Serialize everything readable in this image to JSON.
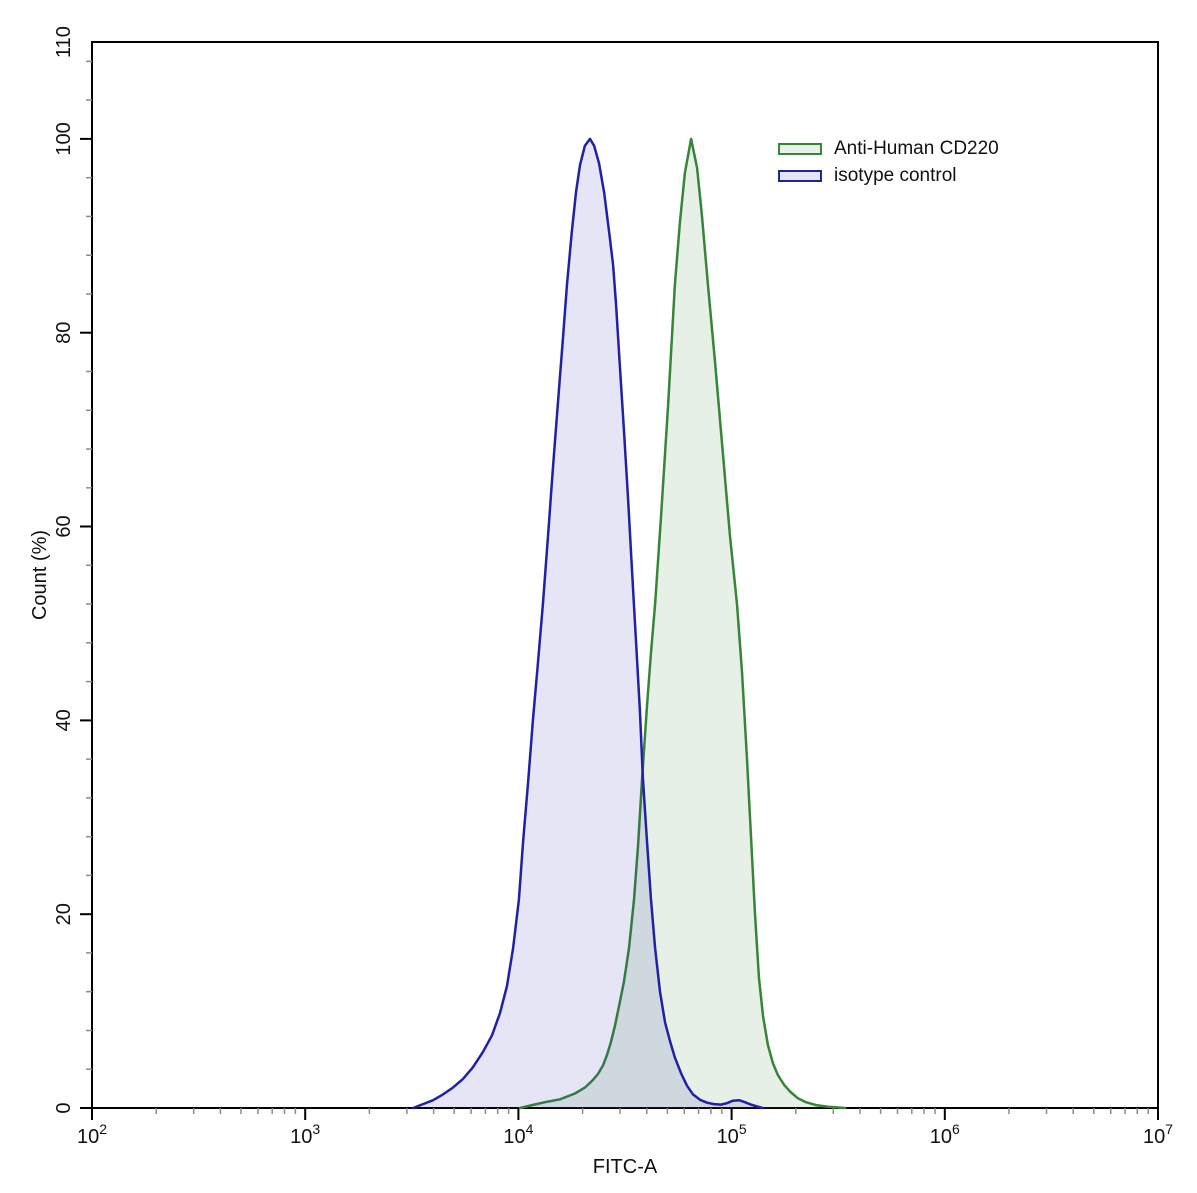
{
  "figure": {
    "background": "#ffffff"
  },
  "chart_data": {
    "type": "area",
    "subtype": "flow-cytometry-histogram",
    "title": "",
    "xlabel": "FITC-A",
    "ylabel": "Count  (%)",
    "x_scale": "log10",
    "x_range": [
      100,
      10000000
    ],
    "y_range": [
      0,
      110
    ],
    "x_tick_exponents": [
      2,
      3,
      4,
      5,
      6,
      7
    ],
    "y_major_ticks": [
      0,
      20,
      40,
      60,
      80,
      100,
      110
    ],
    "y_minor_step": 4,
    "y_minor_max": 108,
    "grid": "off",
    "frame": "full-box",
    "legend_position": "upper-right",
    "axis_color": "#000000",
    "minor_tick_color": "#8a8a8a",
    "series": [
      {
        "name": "Anti-Human CD220",
        "stroke": "#388438",
        "fill": "rgba(60,140,60,0.13)",
        "legend_fill": "#e7f1e7",
        "peak_x": 64500,
        "peak_y": 100,
        "points": [
          [
            10180,
            0
          ],
          [
            11590,
            0.3
          ],
          [
            13320,
            0.6
          ],
          [
            15670,
            0.9
          ],
          [
            18410,
            1.5
          ],
          [
            20510,
            2.1
          ],
          [
            22130,
            2.8
          ],
          [
            23600,
            3.5
          ],
          [
            24940,
            4.4
          ],
          [
            26060,
            5.5
          ],
          [
            27160,
            6.8
          ],
          [
            28380,
            8.5
          ],
          [
            29650,
            10.5
          ],
          [
            31260,
            13
          ],
          [
            33030,
            16.5
          ],
          [
            34850,
            21.5
          ],
          [
            36400,
            27
          ],
          [
            38020,
            34
          ],
          [
            40100,
            41.5
          ],
          [
            41880,
            47
          ],
          [
            43750,
            52
          ],
          [
            46670,
            61
          ],
          [
            50350,
            72.5
          ],
          [
            54200,
            85
          ],
          [
            57280,
            91.5
          ],
          [
            60400,
            96.5
          ],
          [
            64570,
            100
          ],
          [
            68900,
            97
          ],
          [
            72600,
            92
          ],
          [
            77450,
            85
          ],
          [
            83600,
            77
          ],
          [
            90200,
            68.5
          ],
          [
            98300,
            59
          ],
          [
            106000,
            52
          ],
          [
            111900,
            45
          ],
          [
            118100,
            36
          ],
          [
            123300,
            28
          ],
          [
            128800,
            20
          ],
          [
            134300,
            13.5
          ],
          [
            140300,
            9.5
          ],
          [
            148000,
            6.5
          ],
          [
            156300,
            4.6
          ],
          [
            164900,
            3.4
          ],
          [
            176100,
            2.4
          ],
          [
            187900,
            1.7
          ],
          [
            204700,
            1.0
          ],
          [
            223300,
            0.6
          ],
          [
            248900,
            0.3
          ],
          [
            283200,
            0.12
          ],
          [
            340400,
            0
          ]
        ]
      },
      {
        "name": "isotype control",
        "stroke": "#2121a3",
        "fill": "rgba(40,40,170,0.12)",
        "legend_fill": "#e3e5f6",
        "peak_x": 21660,
        "peak_y": 100,
        "points": [
          [
            3210,
            0
          ],
          [
            3570,
            0.4
          ],
          [
            3980,
            0.8
          ],
          [
            4430,
            1.4
          ],
          [
            4930,
            2.1
          ],
          [
            5500,
            3.0
          ],
          [
            6120,
            4.2
          ],
          [
            6820,
            5.8
          ],
          [
            7520,
            7.5
          ],
          [
            8200,
            9.8
          ],
          [
            8840,
            12.6
          ],
          [
            9440,
            16.5
          ],
          [
            10050,
            21.5
          ],
          [
            10520,
            27.5
          ],
          [
            11090,
            33.5
          ],
          [
            11700,
            40
          ],
          [
            12360,
            46
          ],
          [
            13030,
            52
          ],
          [
            13770,
            59
          ],
          [
            14520,
            66
          ],
          [
            15350,
            73
          ],
          [
            16180,
            79.5
          ],
          [
            16900,
            85
          ],
          [
            17820,
            90.5
          ],
          [
            18620,
            94.5
          ],
          [
            19450,
            97.3
          ],
          [
            20510,
            99.3
          ],
          [
            21660,
            100
          ],
          [
            22650,
            99.3
          ],
          [
            23880,
            97.5
          ],
          [
            25230,
            94.5
          ],
          [
            26610,
            90.5
          ],
          [
            27800,
            87
          ],
          [
            28690,
            83
          ],
          [
            29920,
            76.5
          ],
          [
            31260,
            70
          ],
          [
            32660,
            63
          ],
          [
            34120,
            55.5
          ],
          [
            35650,
            48
          ],
          [
            37150,
            41
          ],
          [
            38370,
            34
          ],
          [
            40100,
            27.5
          ],
          [
            41880,
            21.5
          ],
          [
            43750,
            16.5
          ],
          [
            46130,
            12
          ],
          [
            48750,
            8.8
          ],
          [
            51400,
            6.9
          ],
          [
            54200,
            5.2
          ],
          [
            57900,
            3.6
          ],
          [
            61800,
            2.3
          ],
          [
            65920,
            1.4
          ],
          [
            71120,
            0.85
          ],
          [
            76730,
            0.55
          ],
          [
            82600,
            0.4
          ],
          [
            89100,
            0.35
          ],
          [
            95060,
            0.5
          ],
          [
            101400,
            0.75
          ],
          [
            108400,
            0.8
          ],
          [
            115600,
            0.6
          ],
          [
            123300,
            0.35
          ],
          [
            131500,
            0.15
          ],
          [
            140300,
            0
          ]
        ]
      }
    ]
  },
  "legend": {
    "entries": [
      {
        "label": "Anti-Human CD220"
      },
      {
        "label": "isotype control"
      }
    ]
  }
}
